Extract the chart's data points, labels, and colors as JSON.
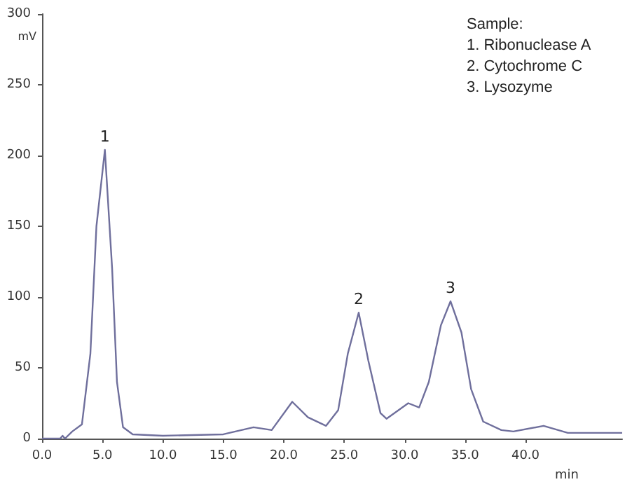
{
  "chart_data": {
    "type": "line",
    "xlabel": "min",
    "ylabel": "mV",
    "x": [
      0,
      1.5,
      1.7,
      1.9,
      2.5,
      3.3,
      4,
      4.5,
      5.2,
      5.8,
      6.2,
      6.7,
      7.5,
      10,
      15,
      17.5,
      19,
      20.7,
      22,
      23.5,
      24.5,
      25.3,
      26.2,
      27,
      28,
      28.5,
      30.3,
      31.2,
      32,
      33,
      33.8,
      34.7,
      35.5,
      36.5,
      38,
      39,
      41.5,
      43.5,
      48
    ],
    "series": [
      {
        "color": "#6f6f9c",
        "values": [
          0,
          0,
          2,
          0,
          5,
          10,
          60,
          150,
          204,
          120,
          40,
          8,
          3,
          2,
          3,
          8,
          6,
          26,
          15,
          9,
          20,
          60,
          89,
          55,
          18,
          14,
          25,
          22,
          40,
          80,
          97,
          75,
          35,
          12,
          6,
          5,
          9,
          4,
          4
        ]
      }
    ],
    "xlim": [
      0,
      48
    ],
    "xticks": [
      {
        "value": 0,
        "label": "0.0"
      },
      {
        "value": 5,
        "label": "5.0"
      },
      {
        "value": 10,
        "label": "10.0"
      },
      {
        "value": 15,
        "label": "15.0"
      },
      {
        "value": 20,
        "label": "20.0"
      },
      {
        "value": 25,
        "label": "25.0"
      },
      {
        "value": 30,
        "label": "30.0"
      },
      {
        "value": 35,
        "label": "35.0"
      },
      {
        "value": 40,
        "label": "40.0"
      }
    ],
    "ylim": [
      0,
      300
    ],
    "yticks": [
      0,
      50,
      100,
      150,
      200,
      250,
      300
    ],
    "grid": false,
    "marker": "none",
    "line_style": "solid",
    "annotations": [
      {
        "text": "1",
        "x": 5.2,
        "y": 204
      },
      {
        "text": "2",
        "x": 26.2,
        "y": 89
      },
      {
        "text": "3",
        "x": 33.8,
        "y": 97
      },
      "Sample:",
      "1. Ribonuclease A",
      "2. Cytochrome C",
      "3. Lysozyme"
    ]
  }
}
